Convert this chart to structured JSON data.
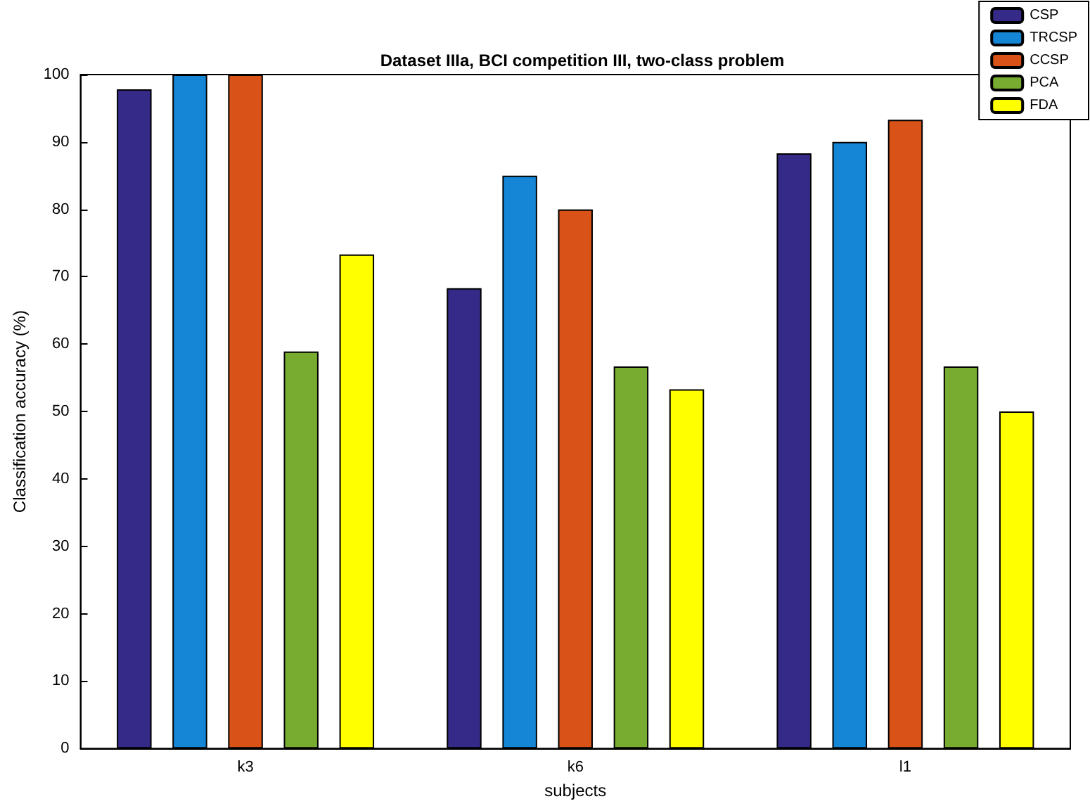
{
  "chart_data": {
    "type": "bar",
    "title": "Dataset IIIa, BCI competition III, two-class problem",
    "xlabel": "subjects",
    "ylabel": "Classification accuracy (%)",
    "categories": [
      "k3",
      "k6",
      "l1"
    ],
    "series": [
      {
        "name": "CSP",
        "color": "#352a87",
        "values": [
          97.8,
          68.3,
          88.3
        ]
      },
      {
        "name": "TRCSP",
        "color": "#1585d6",
        "values": [
          100,
          85,
          90
        ]
      },
      {
        "name": "CCSP",
        "color": "#d95319",
        "values": [
          100,
          80,
          93.3
        ]
      },
      {
        "name": "PCA",
        "color": "#77ac30",
        "values": [
          58.9,
          56.7,
          56.7
        ]
      },
      {
        "name": "FDA",
        "color": "#ffff00",
        "values": [
          73.3,
          53.3,
          50
        ]
      }
    ],
    "ylim": [
      0,
      100
    ],
    "yticks": [
      0,
      10,
      20,
      30,
      40,
      50,
      60,
      70,
      80,
      90,
      100
    ],
    "grid": false,
    "legend": "top right"
  }
}
